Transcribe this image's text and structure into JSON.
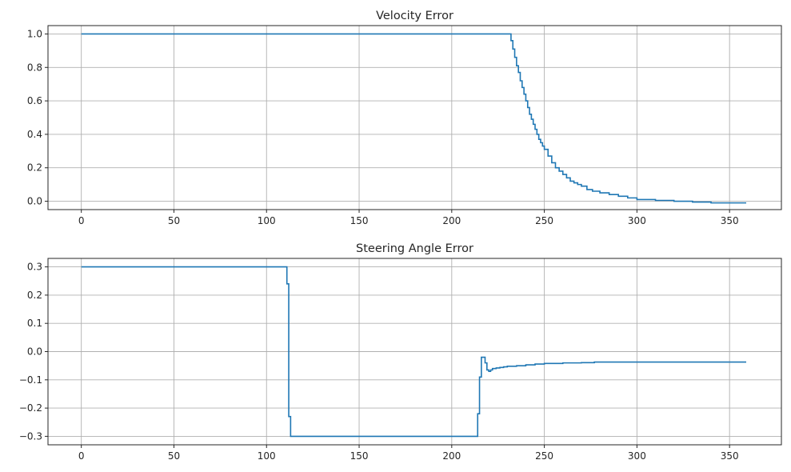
{
  "style": {
    "line_color": "#1f77b4",
    "grid_color": "#b0b0b0",
    "axis_color": "#262626"
  },
  "chart_data": [
    {
      "type": "line",
      "drawstyle": "steps-post",
      "title": "Velocity Error",
      "xlabel": "",
      "ylabel": "",
      "xlim": [
        -18,
        378
      ],
      "ylim": [
        -0.05,
        1.05
      ],
      "xticks": [
        0,
        50,
        100,
        150,
        200,
        250,
        300,
        350
      ],
      "yticks": [
        0.0,
        0.2,
        0.4,
        0.6,
        0.8,
        1.0
      ],
      "xtick_labels": [
        "0",
        "50",
        "100",
        "150",
        "200",
        "250",
        "300",
        "350"
      ],
      "ytick_labels": [
        "0.0",
        "0.2",
        "0.4",
        "0.6",
        "0.8",
        "1.0"
      ],
      "grid": true,
      "series": [
        {
          "x": [
            0,
            232,
            233,
            234,
            235,
            236,
            237,
            238,
            239,
            240,
            241,
            242,
            243,
            244,
            245,
            246,
            247,
            248,
            249,
            250,
            252,
            254,
            256,
            258,
            260,
            262,
            264,
            266,
            268,
            270,
            273,
            276,
            280,
            285,
            290,
            295,
            300,
            310,
            320,
            330,
            340,
            350,
            359
          ],
          "y": [
            1.0,
            0.96,
            0.91,
            0.86,
            0.81,
            0.77,
            0.72,
            0.68,
            0.64,
            0.6,
            0.56,
            0.52,
            0.49,
            0.46,
            0.43,
            0.4,
            0.37,
            0.35,
            0.33,
            0.31,
            0.27,
            0.23,
            0.2,
            0.18,
            0.16,
            0.14,
            0.12,
            0.11,
            0.1,
            0.09,
            0.07,
            0.06,
            0.05,
            0.04,
            0.03,
            0.02,
            0.01,
            0.005,
            0.0,
            -0.005,
            -0.01,
            -0.01,
            -0.01
          ]
        }
      ]
    },
    {
      "type": "line",
      "drawstyle": "steps-post",
      "title": "Steering Angle Error",
      "xlabel": "",
      "ylabel": "",
      "xlim": [
        -18,
        378
      ],
      "ylim": [
        -0.33,
        0.33
      ],
      "xticks": [
        0,
        50,
        100,
        150,
        200,
        250,
        300,
        350
      ],
      "yticks": [
        -0.3,
        -0.2,
        -0.1,
        0.0,
        0.1,
        0.2,
        0.3
      ],
      "xtick_labels": [
        "0",
        "50",
        "100",
        "150",
        "200",
        "250",
        "300",
        "350"
      ],
      "ytick_labels": [
        "−0.3",
        "−0.2",
        "−0.1",
        "0.0",
        "0.1",
        "0.2",
        "0.3"
      ],
      "grid": true,
      "series": [
        {
          "x": [
            0,
            111,
            112,
            113,
            214,
            215,
            216,
            218,
            219,
            220,
            221,
            222,
            224,
            226,
            228,
            230,
            235,
            240,
            245,
            250,
            260,
            270,
            277,
            300,
            359
          ],
          "y": [
            0.3,
            0.24,
            -0.23,
            -0.3,
            -0.22,
            -0.09,
            -0.02,
            -0.04,
            -0.065,
            -0.07,
            -0.065,
            -0.06,
            -0.058,
            -0.056,
            -0.054,
            -0.052,
            -0.05,
            -0.047,
            -0.044,
            -0.042,
            -0.04,
            -0.039,
            -0.037,
            -0.037,
            -0.037
          ]
        }
      ]
    }
  ]
}
